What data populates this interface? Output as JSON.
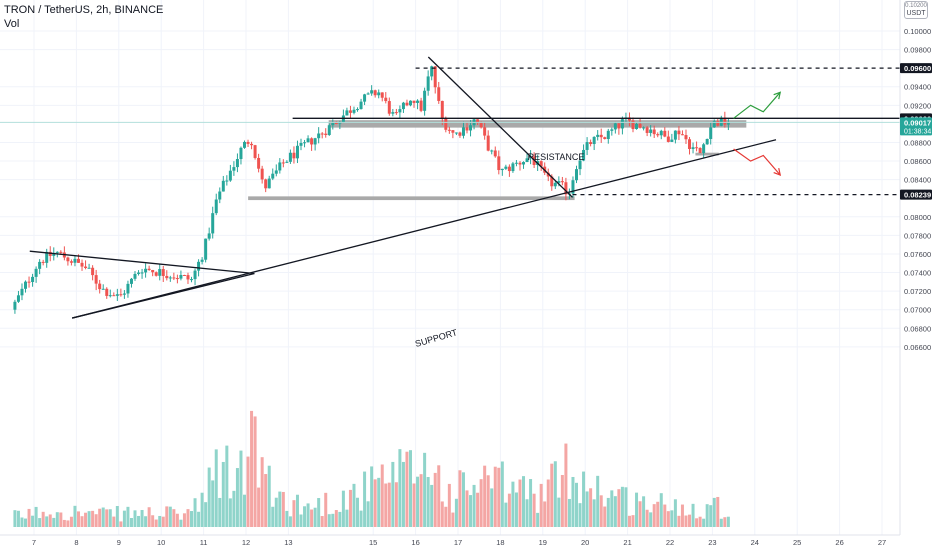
{
  "header": {
    "symbol_line": "TRON / TetherUS, 2h, BINANCE",
    "indicator": "Vol"
  },
  "currency_button": {
    "top": "0.10200",
    "label": "USDT"
  },
  "colors": {
    "up": "#26a69a",
    "down": "#ef5350",
    "vol_up": "#8fd4ca",
    "vol_down": "#f4a6a4",
    "grid": "#f0f3fa",
    "price_line": "#b2dfdb",
    "zone": "#a9a9a9",
    "green_arrow": "#2e9e3e",
    "red_arrow": "#e53935"
  },
  "chart_data": {
    "type": "candlestick",
    "title": "TRON / TetherUS, 2h, BINANCE",
    "xlabel": "",
    "ylabel": "",
    "grid": true,
    "y_range": [
      0.0653,
      0.1022
    ],
    "y_ticks": [
      "0.10000",
      "0.09800",
      "0.09400",
      "0.09200",
      "0.08800",
      "0.08600",
      "0.08400",
      "0.08000",
      "0.07800",
      "0.07600",
      "0.07400",
      "0.07200",
      "0.07000",
      "0.06800",
      "0.06600"
    ],
    "x_ticks": [
      "7",
      "8",
      "9",
      "10",
      "11",
      "12",
      "13",
      "15",
      "16",
      "17",
      "18",
      "19",
      "20",
      "21",
      "22",
      "23",
      "24",
      "25",
      "26",
      "27"
    ],
    "x_tick_days": [
      7,
      8,
      9,
      10,
      11,
      12,
      13,
      15,
      16,
      17,
      18,
      19,
      20,
      21,
      22,
      23,
      24,
      25,
      26,
      27
    ],
    "price_badges": [
      {
        "label": "0.09600",
        "value": 0.096,
        "style": "dark"
      },
      {
        "label": "0.09060",
        "value": 0.0906,
        "style": "dark"
      },
      {
        "label": "0.09017",
        "sublabel": "01:38:34",
        "value": 0.09017,
        "style": "green"
      },
      {
        "label": "0.08239",
        "value": 0.08239,
        "style": "dark"
      }
    ],
    "annotations": [
      {
        "text": "RESISTANCE",
        "kind": "label"
      },
      {
        "text": "SUPPORT",
        "kind": "label"
      }
    ],
    "levels": {
      "dashed_top": 0.096,
      "resistance": 0.0906,
      "dashed_bottom": 0.08239,
      "resistance_zone": [
        0.0896,
        0.0904
      ],
      "support_zone": [
        0.0818,
        0.0822
      ],
      "small_zone": [
        0.0866,
        0.0869
      ]
    },
    "trendlines": [
      {
        "name": "support",
        "from": [
          7.9,
          0.0691
        ],
        "to": [
          24.5,
          0.0883
        ]
      },
      {
        "name": "descending",
        "from": [
          16.3,
          0.0972
        ],
        "to": [
          19.7,
          0.0821
        ]
      },
      {
        "name": "early-upper",
        "from": [
          6.9,
          0.0763
        ],
        "to": [
          12.2,
          0.0739
        ]
      },
      {
        "name": "early-lower",
        "from": [
          7.9,
          0.0691
        ],
        "to": [
          12.2,
          0.0739
        ]
      }
    ],
    "projection_up": [
      [
        23.5,
        0.0906
      ],
      [
        23.9,
        0.092
      ],
      [
        24.2,
        0.0913
      ],
      [
        24.6,
        0.0934
      ]
    ],
    "projection_down": [
      [
        23.5,
        0.0873
      ],
      [
        23.9,
        0.086
      ],
      [
        24.2,
        0.0866
      ],
      [
        24.6,
        0.0845
      ]
    ],
    "path_nodes": [
      [
        6.55,
        0.07
      ],
      [
        7.2,
        0.0752
      ],
      [
        7.6,
        0.0762
      ],
      [
        8.3,
        0.0745
      ],
      [
        8.7,
        0.0722
      ],
      [
        9.1,
        0.0713
      ],
      [
        9.6,
        0.0745
      ],
      [
        10.3,
        0.0738
      ],
      [
        10.8,
        0.0732
      ],
      [
        11.1,
        0.0765
      ],
      [
        11.4,
        0.082
      ],
      [
        11.7,
        0.0848
      ],
      [
        12.0,
        0.0875
      ],
      [
        12.2,
        0.0885
      ],
      [
        12.5,
        0.083
      ],
      [
        12.8,
        0.0848
      ],
      [
        13.0,
        0.086
      ],
      [
        13.5,
        0.0878
      ],
      [
        14.0,
        0.0895
      ],
      [
        14.4,
        0.091
      ],
      [
        14.8,
        0.0925
      ],
      [
        15.2,
        0.0935
      ],
      [
        15.6,
        0.0905
      ],
      [
        16.0,
        0.093
      ],
      [
        16.2,
        0.0915
      ],
      [
        16.45,
        0.0962
      ],
      [
        16.7,
        0.0905
      ],
      [
        17.0,
        0.0888
      ],
      [
        17.5,
        0.0905
      ],
      [
        17.8,
        0.0875
      ],
      [
        18.1,
        0.0848
      ],
      [
        18.5,
        0.0858
      ],
      [
        18.8,
        0.0865
      ],
      [
        19.2,
        0.0838
      ],
      [
        19.5,
        0.0833
      ],
      [
        19.7,
        0.0826
      ],
      [
        19.9,
        0.086
      ],
      [
        20.2,
        0.088
      ],
      [
        20.6,
        0.0888
      ],
      [
        21.0,
        0.0903
      ],
      [
        21.5,
        0.0897
      ],
      [
        22.0,
        0.0885
      ],
      [
        22.3,
        0.0893
      ],
      [
        22.6,
        0.0875
      ],
      [
        22.8,
        0.0868
      ],
      [
        23.0,
        0.0895
      ],
      [
        23.15,
        0.0902
      ],
      [
        23.4,
        0.09017
      ]
    ],
    "volume_nodes": [
      [
        6.55,
        0.1
      ],
      [
        7.5,
        0.16
      ],
      [
        8.5,
        0.12
      ],
      [
        9.5,
        0.13
      ],
      [
        10.5,
        0.12
      ],
      [
        11.0,
        0.22
      ],
      [
        11.3,
        0.55
      ],
      [
        11.8,
        0.45
      ],
      [
        12.2,
        0.8
      ],
      [
        12.6,
        0.3
      ],
      [
        13.5,
        0.18
      ],
      [
        14.5,
        0.3
      ],
      [
        15.5,
        0.45
      ],
      [
        16.3,
        0.6
      ],
      [
        16.8,
        0.3
      ],
      [
        17.5,
        0.42
      ],
      [
        18.2,
        0.38
      ],
      [
        19.0,
        0.3
      ],
      [
        19.6,
        0.55
      ],
      [
        20.2,
        0.38
      ],
      [
        21.0,
        0.25
      ],
      [
        22.0,
        0.2
      ],
      [
        22.7,
        0.18
      ],
      [
        23.1,
        0.22
      ],
      [
        23.4,
        0.1
      ]
    ],
    "candle_step_days": 0.0833
  }
}
